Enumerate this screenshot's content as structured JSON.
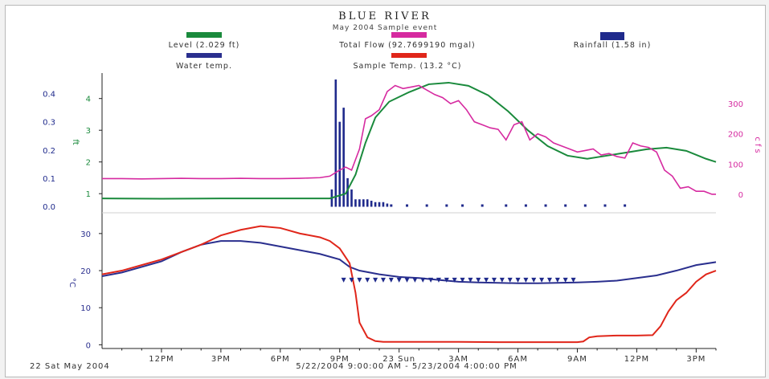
{
  "chart_data": [
    {
      "type": "line",
      "title": "BLUE RIVER",
      "subtitle": "May 2004 Sample event",
      "legend": [
        {
          "label": "Level (2.029 ft)",
          "color": "#1a8a3c"
        },
        {
          "label": "Total Flow (92.7699190 mgal)",
          "color": "#d62aa0"
        },
        {
          "label": "Rainfall (1.58 in)",
          "color": "#1f2a8c"
        }
      ],
      "y_axes": {
        "rainfall": {
          "label": "",
          "ticks": [
            "0.0",
            "0.1",
            "0.2",
            "0.3",
            "0.4"
          ],
          "ylim": [
            0,
            0.45
          ],
          "color": "#1f2a8c"
        },
        "level": {
          "label": "ft",
          "ticks": [
            "1",
            "2",
            "3",
            "4"
          ],
          "ylim": [
            0.6,
            4.6
          ],
          "color": "#1a8a3c"
        },
        "flow": {
          "label": "cfs",
          "ticks": [
            "0",
            "100",
            "200",
            "300"
          ],
          "ylim": [
            -40,
            380
          ],
          "color": "#d62aa0"
        }
      },
      "x_hours_range": [
        0,
        31
      ],
      "rainfall_bars": {
        "x": [
          20.6,
          20.8,
          21.0,
          21.2,
          21.4,
          21.6,
          21.8,
          22.0,
          22.2,
          22.4,
          22.6,
          22.8,
          23.0,
          23.2,
          23.4
        ],
        "values": [
          0.06,
          0.45,
          0.3,
          0.35,
          0.1,
          0.06,
          0.025,
          0.025,
          0.025,
          0.025,
          0.02,
          0.015,
          0.015,
          0.015,
          0.01
        ]
      },
      "rainfall_dots": [
        23.6,
        24.4,
        25.4,
        26.4,
        27.2,
        28.2,
        29.4,
        30.4,
        31.4,
        32.4,
        33.4,
        34.4,
        35.4
      ],
      "series": [
        {
          "name": "Level (2.029 ft)",
          "color": "#1a8a3c",
          "x": [
            9,
            12,
            15,
            18,
            20.5,
            21.3,
            21.8,
            22.3,
            22.8,
            23.5,
            24.5,
            25.5,
            26.5,
            27.5,
            28.5,
            29.5,
            30.5,
            31.5,
            32.5,
            33.5,
            34.5,
            35.5,
            36.5,
            37.5,
            38.5,
            39.5,
            40
          ],
          "values": [
            0.85,
            0.84,
            0.85,
            0.85,
            0.85,
            1.0,
            1.6,
            2.6,
            3.4,
            3.9,
            4.2,
            4.45,
            4.5,
            4.4,
            4.1,
            3.6,
            3.0,
            2.5,
            2.2,
            2.1,
            2.2,
            2.3,
            2.4,
            2.45,
            2.35,
            2.1,
            2.0
          ]
        },
        {
          "name": "Total Flow (92.7699190 mgal)",
          "color": "#d62aa0",
          "x": [
            9,
            10,
            11,
            12,
            13,
            14,
            15,
            16,
            17,
            18,
            19,
            20,
            20.5,
            21,
            21.3,
            21.6,
            22,
            22.3,
            22.6,
            23,
            23.4,
            23.8,
            24.2,
            24.6,
            25,
            25.4,
            25.8,
            26.2,
            26.6,
            27,
            27.4,
            27.8,
            28.2,
            28.6,
            29,
            29.4,
            29.8,
            30.2,
            30.6,
            31,
            31.4,
            31.8,
            32.2,
            32.6,
            33,
            33.4,
            33.8,
            34.2,
            34.6,
            35,
            35.4,
            35.8,
            36.2,
            36.6,
            37,
            37.4,
            37.8,
            38.2,
            38.6,
            39,
            39.4,
            39.8,
            40
          ],
          "values": [
            52,
            52,
            51,
            52,
            53,
            52,
            52,
            53,
            52,
            52,
            53,
            55,
            60,
            80,
            90,
            80,
            150,
            250,
            260,
            280,
            340,
            360,
            350,
            355,
            360,
            345,
            330,
            320,
            300,
            310,
            280,
            240,
            230,
            220,
            215,
            180,
            230,
            240,
            180,
            200,
            190,
            170,
            160,
            150,
            140,
            145,
            150,
            130,
            135,
            125,
            120,
            170,
            160,
            155,
            140,
            80,
            60,
            20,
            25,
            10,
            10,
            0,
            0
          ]
        }
      ]
    },
    {
      "type": "line",
      "legend": [
        {
          "label": "Water temp.",
          "color": "#2a2f8e"
        },
        {
          "label": "Sample Temp. (13.2 °C)",
          "color": "#e0261a"
        }
      ],
      "ylabel": "°C",
      "yticks": [
        "0",
        "10",
        "20",
        "30"
      ],
      "ylim": [
        -1,
        33
      ],
      "x_hours_range": [
        0,
        31
      ],
      "xticks": [
        "12PM",
        "3PM",
        "6PM",
        "9PM",
        "23 Sun",
        "3AM",
        "6AM",
        "9AM",
        "12PM",
        "3PM"
      ],
      "xtick_hours": [
        12,
        15,
        18,
        21,
        24,
        27,
        30,
        33,
        36,
        39
      ],
      "series": [
        {
          "name": "Water temp.",
          "color": "#2a2f8e",
          "x": [
            9,
            10,
            11,
            12,
            13,
            14,
            15,
            16,
            17,
            18,
            19,
            20,
            21,
            21.5,
            22,
            23,
            24,
            25,
            26,
            27,
            28,
            29,
            30,
            31,
            32,
            33,
            34,
            35,
            36,
            37,
            38,
            39,
            40
          ],
          "values": [
            18.5,
            19.5,
            21,
            22.5,
            25,
            27,
            28,
            28,
            27.5,
            26.5,
            25.5,
            24.5,
            23,
            21,
            20,
            19,
            18.3,
            18,
            17.5,
            17,
            16.8,
            16.7,
            16.6,
            16.6,
            16.7,
            16.8,
            17,
            17.3,
            18,
            18.7,
            20,
            21.5,
            22.3
          ]
        },
        {
          "name": "Sample Temp. (13.2 °C)",
          "color": "#e0261a",
          "x": [
            9,
            10,
            11,
            12,
            13,
            14,
            15,
            16,
            17,
            18,
            19,
            20,
            20.5,
            21,
            21.5,
            21.8,
            22,
            22.4,
            22.8,
            23.2,
            23.8,
            25,
            27,
            29,
            31,
            32,
            33,
            33.3,
            33.6,
            34,
            35,
            36,
            36.8,
            37.2,
            37.6,
            38,
            38.5,
            39,
            39.5,
            40
          ],
          "values": [
            19,
            20,
            21.5,
            23,
            25,
            27,
            29.5,
            31,
            32,
            31.5,
            30,
            29,
            28,
            26,
            22,
            14,
            6,
            2,
            1,
            0.8,
            0.8,
            0.8,
            0.8,
            0.7,
            0.7,
            0.7,
            0.7,
            0.9,
            2,
            2.3,
            2.5,
            2.5,
            2.6,
            5,
            9,
            12,
            14,
            17,
            19,
            20
          ]
        }
      ],
      "sample_markers": {
        "color": "#1f2a8c",
        "x": [
          21.2,
          21.6,
          22.0,
          22.4,
          22.8,
          23.2,
          23.6,
          24.0,
          24.4,
          24.8,
          25.2,
          25.6,
          26.0,
          26.4,
          26.8,
          27.2,
          27.6,
          28.0,
          28.4,
          28.8,
          29.2,
          29.6,
          30.0,
          30.4,
          30.8,
          31.2,
          31.6,
          32.0,
          32.4,
          32.8
        ],
        "value": 17
      }
    }
  ],
  "footer": {
    "date_label": "22 Sat May 2004",
    "range_label": "5/22/2004 9:00:00 AM - 5/23/2004 4:00:00 PM"
  }
}
